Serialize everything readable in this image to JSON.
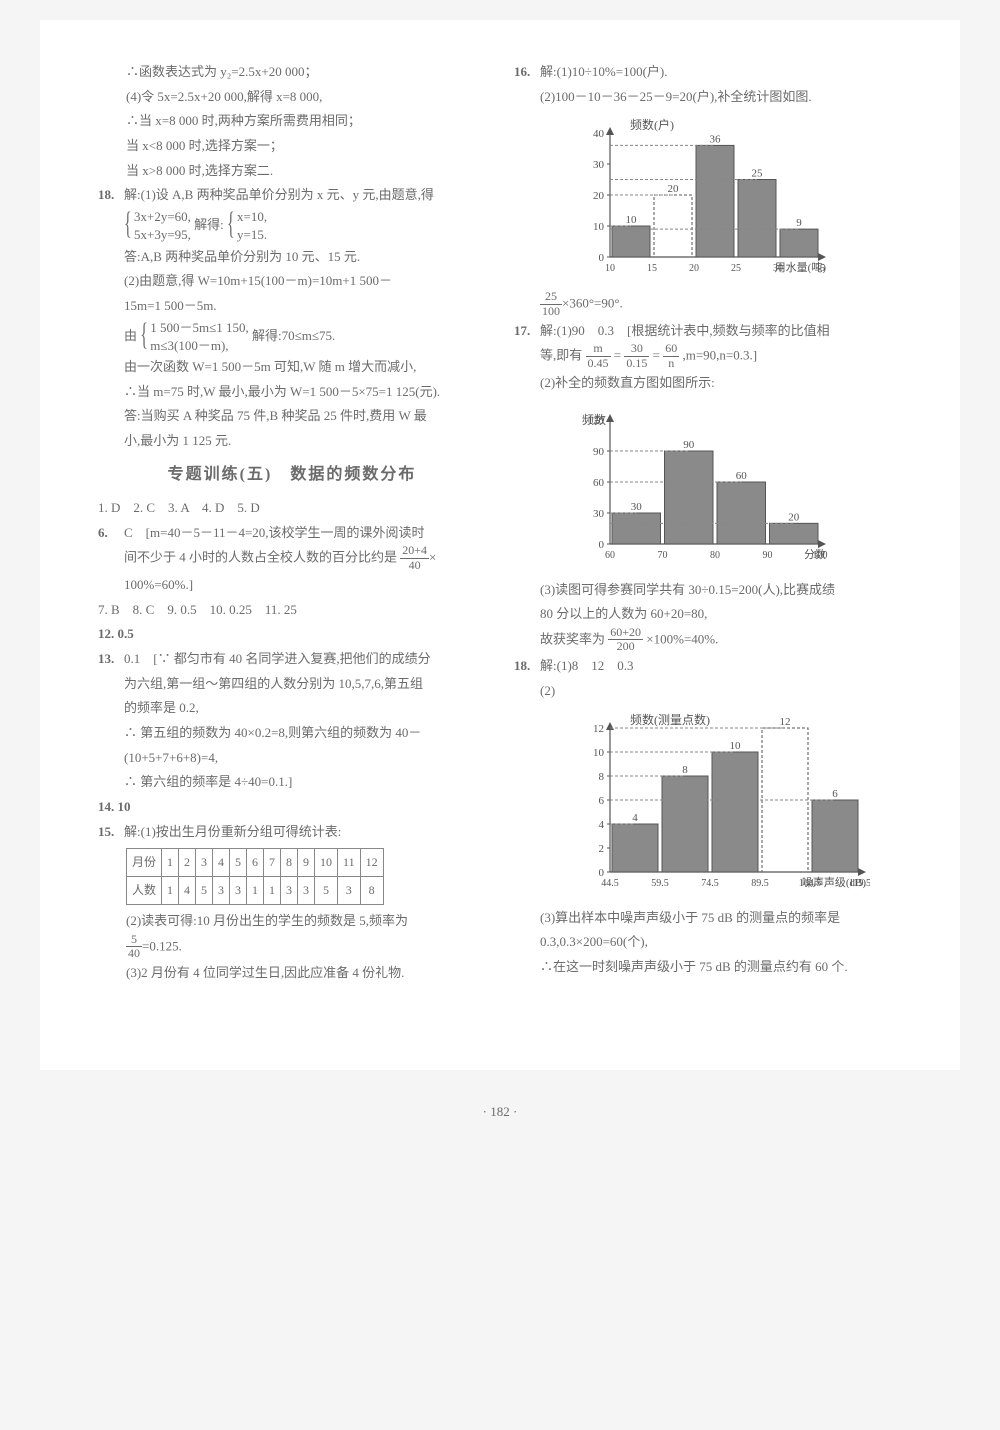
{
  "left": {
    "pre": [
      "∴函数表达式为 y₂=2.5x+20 000；",
      "(4)令 5x=2.5x+20 000,解得 x=8 000,",
      "∴当 x=8 000 时,两种方案所需费用相同；",
      "当 x<8 000 时,选择方案一；",
      "当 x>8 000 时,选择方案二."
    ],
    "q18": {
      "num": "18.",
      "lead": "解:(1)设 A,B 两种奖品单价分别为 x 元、y 元,由题意,得",
      "sys_l1": "3x+2y=60,",
      "sys_l2": "5x+3y=95,",
      "mid": "解得:",
      "sys_r1": "x=10,",
      "sys_r2": "y=15.",
      "ans1": "答:A,B 两种奖品单价分别为 10 元、15 元.",
      "p2a": "(2)由题意,得 W=10m+15(100－m)=10m+1 500－",
      "p2b": "15m=1 500－5m.",
      "by": "由",
      "sys2_l1": "1 500－5m≤1 150,",
      "sys2_l2": "m≤3(100－m),",
      "sol2": "解得:70≤m≤75.",
      "p2c": "由一次函数 W=1 500－5m 可知,W 随 m 增大而减小,",
      "p2d": "∴当 m=75 时,W 最小,最小为 W=1 500－5×75=1 125(元).",
      "p2e": "答:当购买 A 种奖品 75 件,B 种奖品 25 件时,费用 W 最",
      "p2f": "小,最小为 1 125 元."
    },
    "section_title": "专题训练(五)　数据的频数分布",
    "mcq1": "1. D　2. C　3. A　4. D　5. D",
    "q6": {
      "num": "6.",
      "a": "C　[m=40－5－11－4=20,该校学生一周的课外阅读时",
      "b": "间不少于 4 小时的人数占全校人数的百分比约是",
      "frac_n": "20+4",
      "frac_d": "40",
      "tail": "×",
      "c": "100%=60%.]"
    },
    "mcq2": "7. B　8. C　9. 0.5　10. 0.25　11. 25",
    "l12": "12. 0.5",
    "q13": {
      "num": "13.",
      "a": "0.1　[∵ 都匀市有 40 名同学进入复赛,把他们的成绩分",
      "b": "为六组,第一组～第四组的人数分别为 10,5,7,6,第五组",
      "c": "的频率是 0.2,",
      "d": "∴ 第五组的频数为 40×0.2=8,则第六组的频数为 40－",
      "e": "(10+5+7+6+8)=4,",
      "f": "∴ 第六组的频率是 4÷40=0.1.]"
    },
    "l14": "14. 10",
    "q15": {
      "num": "15.",
      "a": "解:(1)按出生月份重新分组可得统计表:",
      "table": {
        "h": [
          "月份",
          "1",
          "2",
          "3",
          "4",
          "5",
          "6",
          "7",
          "8",
          "9",
          "10",
          "11",
          "12"
        ],
        "r": [
          "人数",
          "1",
          "4",
          "5",
          "3",
          "3",
          "1",
          "1",
          "3",
          "3",
          "5",
          "3",
          "8"
        ]
      },
      "b": "(2)读表可得:10 月份出生的学生的频数是 5,频率为",
      "frac_n": "5",
      "frac_d": "40",
      "tail": "=0.125.",
      "c": "(3)2 月份有 4 位同学过生日,因此应准备 4 份礼物."
    }
  },
  "right": {
    "q16": {
      "num": "16.",
      "a": "解:(1)10÷10%=100(户).",
      "b": "(2)100－10－36－25－9=20(户),补全统计图如图.",
      "chart": {
        "title": "频数(户)",
        "xlabel": "用水量(吨)",
        "yticks": [
          0,
          10,
          20,
          30,
          40
        ],
        "xticks": [
          "10",
          "15",
          "20",
          "25",
          "30",
          "35"
        ],
        "bars": [
          10,
          20,
          36,
          25,
          9
        ],
        "bar_color": "#8a8a8a",
        "highlight_idx": 1,
        "bg": "#ffffff",
        "grid": "#999999"
      },
      "c_pre": "",
      "frac_n": "25",
      "frac_d": "100",
      "c_tail": "×360°=90°."
    },
    "q17": {
      "num": "17.",
      "a": "解:(1)90　0.3　[根据统计表中,频数与频率的比值相",
      "b_pre": "等,即有",
      "f1n": "m",
      "f1d": "0.45",
      "eq1": "=",
      "f2n": "30",
      "f2d": "0.15",
      "eq2": "=",
      "f3n": "60",
      "f3d": "n",
      "b_tail": ",m=90,n=0.3.]",
      "c": "(2)补全的频数直方图如图所示:",
      "chart": {
        "ylabel": "频数",
        "xlabel": "分数",
        "yticks": [
          0,
          30,
          60,
          90,
          120
        ],
        "xticks": [
          "60",
          "70",
          "80",
          "90",
          "100"
        ],
        "points": [
          30,
          90,
          60,
          20
        ],
        "bar_color": "#8a8a8a"
      },
      "d": "(3)读图可得参赛同学共有 30÷0.15=200(人),比赛成绩",
      "e": "80 分以上的人数为 60+20=80,",
      "f_pre": "故获奖率为",
      "f_n": "60+20",
      "f_d": "200",
      "f_tail": "×100%=40%."
    },
    "q18r": {
      "num": "18.",
      "a": "解:(1)8　12　0.3",
      "b": "(2)",
      "chart": {
        "title": "频数(测量点数)",
        "xlabel": "噪声声级(dB)",
        "yticks": [
          0,
          2,
          4,
          6,
          8,
          10,
          12
        ],
        "xticks": [
          "44.5",
          "59.5",
          "74.5",
          "89.5",
          "104.5",
          "119.5"
        ],
        "bars": [
          4,
          8,
          10,
          12,
          6
        ],
        "bar_color": "#8a8a8a",
        "highlight_idx": 3
      },
      "c": "(3)算出样本中噪声声级小于 75 dB 的测量点的频率是",
      "d": "0.3,0.3×200=60(个),",
      "e": "∴在这一时刻噪声声级小于 75 dB 的测量点约有 60 个."
    }
  },
  "page_num": "· 182 ·"
}
